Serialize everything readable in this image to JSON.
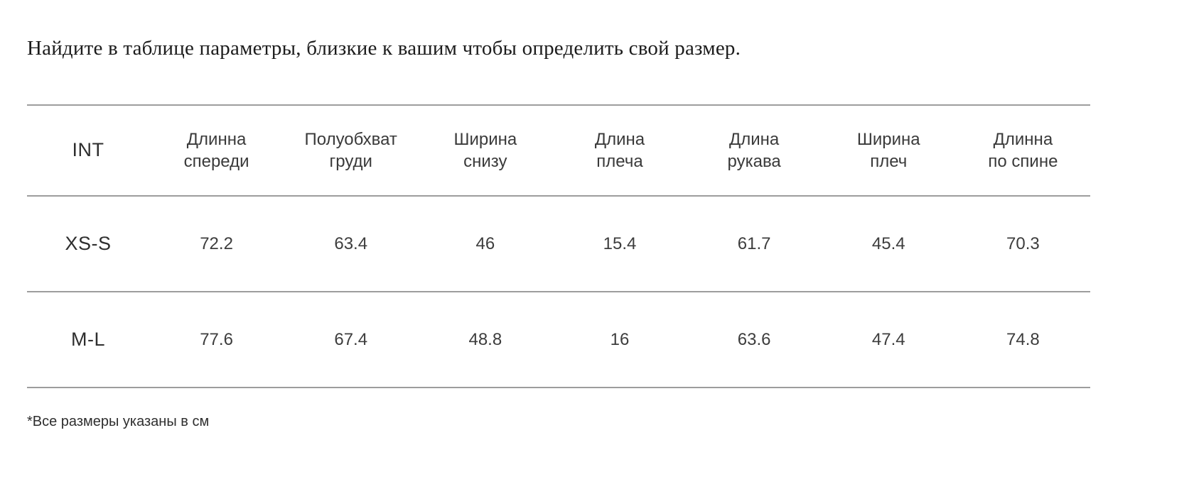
{
  "intro": {
    "text": "Найдите в таблице параметры, близкие к вашим чтобы определить свой размер."
  },
  "table": {
    "columns": [
      "INT",
      "Длинна\nспереди",
      "Полуобхват\nгруди",
      "Ширина\nснизу",
      "Длина\nплеча",
      "Длина\nрукава",
      "Ширина\nплеч",
      "Длинна\nпо спине"
    ],
    "rows": [
      {
        "size": "XS-S",
        "values": [
          "72.2",
          "63.4",
          "46",
          "15.4",
          "61.7",
          "45.4",
          "70.3"
        ]
      },
      {
        "size": "M-L",
        "values": [
          "77.6",
          "67.4",
          "48.8",
          "16",
          "63.6",
          "47.4",
          "74.8"
        ]
      }
    ]
  },
  "footnote": {
    "text": "*Все размеры указаны в см"
  }
}
